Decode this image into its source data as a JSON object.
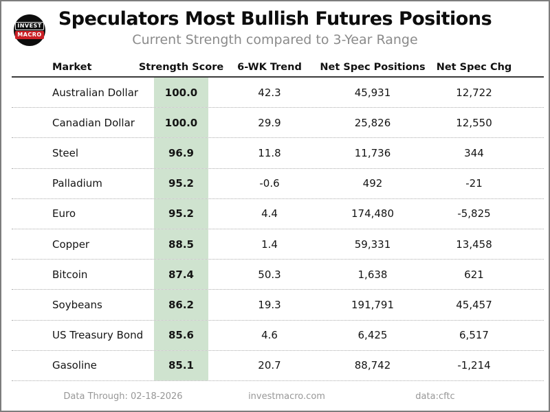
{
  "header": {
    "title": "Speculators Most Bullish Futures Positions",
    "subtitle": "Current Strength compared to 3-Year Range",
    "logo": {
      "line1": "INVEST",
      "line2": "MACRO"
    }
  },
  "table": {
    "columns": {
      "market": "Market",
      "score": "Strength Score",
      "trend": "6-WK Trend",
      "positions": "Net Spec Positions",
      "chg": "Net Spec Chg"
    },
    "rows": [
      {
        "market": "Australian Dollar",
        "score": "100.0",
        "trend": "42.3",
        "positions": "45,931",
        "chg": "12,722"
      },
      {
        "market": "Canadian Dollar",
        "score": "100.0",
        "trend": "29.9",
        "positions": "25,826",
        "chg": "12,550"
      },
      {
        "market": "Steel",
        "score": "96.9",
        "trend": "11.8",
        "positions": "11,736",
        "chg": "344"
      },
      {
        "market": "Palladium",
        "score": "95.2",
        "trend": "-0.6",
        "positions": "492",
        "chg": "-21"
      },
      {
        "market": "Euro",
        "score": "95.2",
        "trend": "4.4",
        "positions": "174,480",
        "chg": "-5,825"
      },
      {
        "market": "Copper",
        "score": "88.5",
        "trend": "1.4",
        "positions": "59,331",
        "chg": "13,458"
      },
      {
        "market": "Bitcoin",
        "score": "87.4",
        "trend": "50.3",
        "positions": "1,638",
        "chg": "621"
      },
      {
        "market": "Soybeans",
        "score": "86.2",
        "trend": "19.3",
        "positions": "191,791",
        "chg": "45,457"
      },
      {
        "market": "US Treasury Bond",
        "score": "85.6",
        "trend": "4.6",
        "positions": "6,425",
        "chg": "6,517"
      },
      {
        "market": "Gasoline",
        "score": "85.1",
        "trend": "20.7",
        "positions": "88,742",
        "chg": "-1,214"
      }
    ]
  },
  "footer": {
    "data_through": "Data Through: 02-18-2026",
    "site": "investmacro.com",
    "source": "data:cftc"
  },
  "colors": {
    "score_highlight": "#cfe3cf",
    "logo_red": "#cb2026",
    "subtitle_gray": "#8a8a8a",
    "footer_gray": "#979797"
  }
}
